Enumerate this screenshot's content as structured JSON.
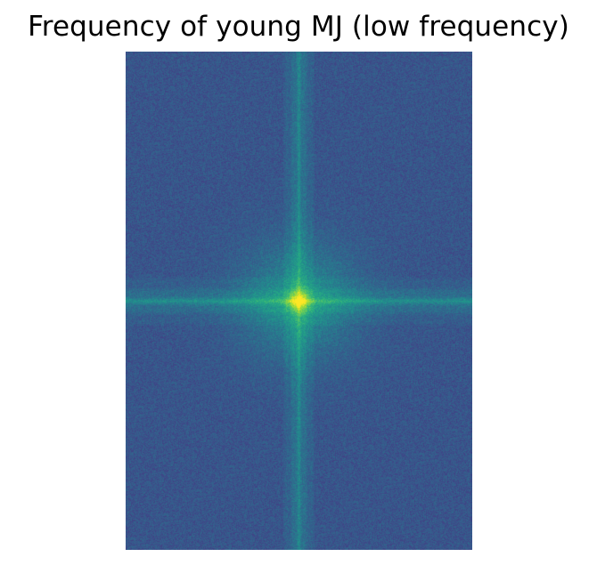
{
  "figure": {
    "title": "Frequency of young MJ (low frequency)"
  },
  "spectrum": {
    "description_icon": "fft-magnitude-spectrum-image",
    "colormap": "viridis",
    "colors": {
      "background": "#3e5e8c",
      "cross_band": "#2f9e7f",
      "center_peak": "#e8e51c",
      "halo": "#4fc06a"
    }
  }
}
